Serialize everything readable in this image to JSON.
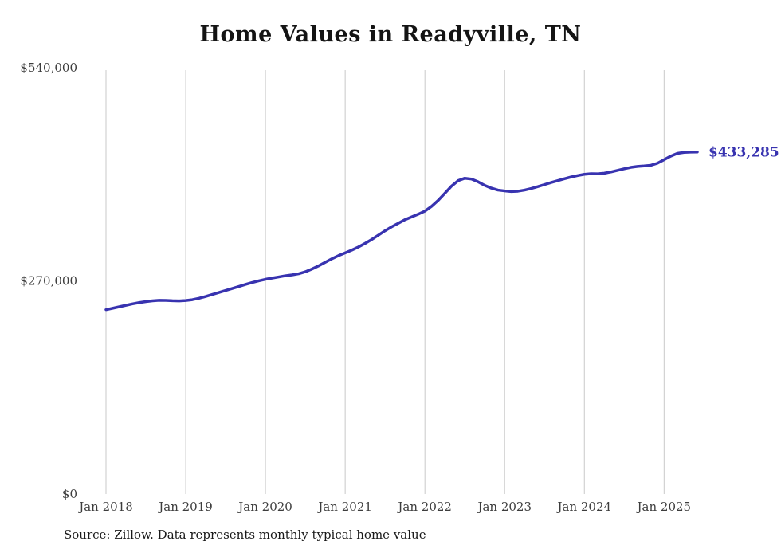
{
  "title": "Home Values in Readyville, TN",
  "source_note": "Source: Zillow. Data represents monthly typical home value",
  "end_label": "$433,285",
  "colors": {
    "line": "#3833b0",
    "grid": "#c9c9c9",
    "tick_text": "#3d3d3d",
    "title_text": "#141414",
    "end_label_text": "#3833b0"
  },
  "chart_data": {
    "type": "line",
    "title": "Home Values in Readyville, TN",
    "xlabel": "",
    "ylabel": "",
    "x_start": "2018-01",
    "x_end": "2025-06",
    "frequency": "monthly",
    "x_tick_labels": [
      "Jan 2018",
      "Jan 2019",
      "Jan 2020",
      "Jan 2021",
      "Jan 2022",
      "Jan 2023",
      "Jan 2024",
      "Jan 2025"
    ],
    "y_ticks": [
      {
        "value": 0,
        "label": "$0"
      },
      {
        "value": 270000,
        "label": "$270,000"
      },
      {
        "value": 540000,
        "label": "$540,000"
      }
    ],
    "ylim": [
      0,
      540000
    ],
    "grid": "vertical-only",
    "legend": "none",
    "final_value": 433285,
    "annotation": "$433,285",
    "series": [
      {
        "name": "Typical home value",
        "values": [
          233500,
          235300,
          237200,
          239100,
          240900,
          242500,
          243800,
          244800,
          245400,
          245300,
          244900,
          244700,
          245100,
          246200,
          248000,
          250300,
          252800,
          255300,
          257800,
          260300,
          262900,
          265500,
          267900,
          270100,
          272000,
          273500,
          275000,
          276500,
          277600,
          279000,
          281500,
          285000,
          289000,
          293500,
          298000,
          302000,
          305500,
          309000,
          313000,
          317500,
          322500,
          328000,
          333500,
          338500,
          343000,
          347500,
          351000,
          354500,
          358400,
          364400,
          372000,
          381000,
          390000,
          397000,
          400000,
          399000,
          395500,
          391000,
          387500,
          385000,
          384000,
          383200,
          383600,
          385000,
          387000,
          389400,
          392000,
          394600,
          397000,
          399400,
          401600,
          403400,
          405000,
          405800,
          405600,
          406400,
          408000,
          410000,
          412000,
          413800,
          415000,
          415600,
          416400,
          419000,
          423500,
          428000,
          431500,
          432800,
          433100,
          433285
        ]
      }
    ]
  }
}
